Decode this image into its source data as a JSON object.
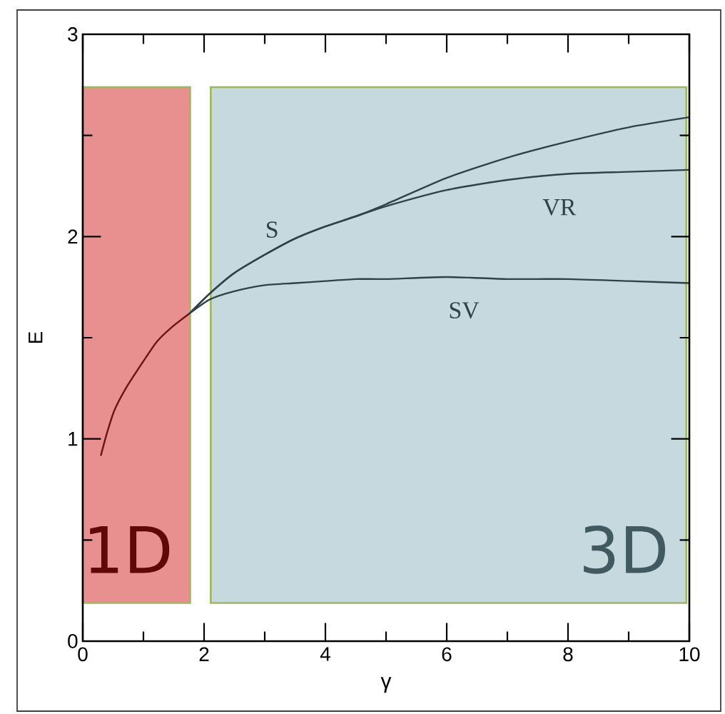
{
  "chart_data": {
    "type": "line",
    "xlabel": "γ",
    "ylabel": "E",
    "xlim": [
      0,
      10
    ],
    "ylim": [
      0,
      3
    ],
    "xticks": [
      0,
      {
        "value": 1,
        "label": null
      },
      2,
      {
        "value": 3,
        "label": null
      },
      4,
      {
        "value": 5,
        "label": null
      },
      6,
      {
        "value": 7,
        "label": null
      },
      8,
      {
        "value": 9,
        "label": null
      },
      10
    ],
    "yticks": [
      0,
      {
        "value": 0.5,
        "label": null
      },
      1,
      {
        "value": 1.5,
        "label": null
      },
      2,
      {
        "value": 2.5,
        "label": null
      },
      3
    ],
    "series": [
      {
        "color": "#6a1414",
        "x": [
          0.3,
          0.4,
          0.52,
          0.71,
          0.99,
          1.22,
          1.46,
          1.76
        ],
        "values": [
          0.92,
          1.03,
          1.14,
          1.25,
          1.38,
          1.48,
          1.55,
          1.62
        ]
      },
      {
        "name": "S",
        "color": "#2f4247",
        "x": [
          1.76,
          2.1,
          2.5,
          3,
          3.5,
          4,
          4.5,
          5,
          6,
          7,
          8,
          9,
          10
        ],
        "values": [
          1.62,
          1.72,
          1.82,
          1.91,
          1.99,
          2.05,
          2.1,
          2.16,
          2.29,
          2.39,
          2.47,
          2.54,
          2.59
        ]
      },
      {
        "name": "VR",
        "color": "#2f4247",
        "x": [
          1.76,
          2.1,
          2.5,
          3,
          3.5,
          4,
          4.5,
          5,
          6,
          7,
          8,
          9,
          10
        ],
        "values": [
          1.62,
          1.72,
          1.82,
          1.91,
          1.99,
          2.05,
          2.1,
          2.15,
          2.23,
          2.28,
          2.31,
          2.32,
          2.33
        ]
      },
      {
        "name": "SV",
        "color": "#2f4247",
        "x": [
          1.76,
          2.1,
          2.5,
          3,
          3.5,
          4,
          4.5,
          5,
          6,
          7,
          8,
          9,
          10
        ],
        "values": [
          1.62,
          1.69,
          1.73,
          1.76,
          1.77,
          1.78,
          1.79,
          1.79,
          1.8,
          1.79,
          1.79,
          1.78,
          1.77
        ]
      }
    ],
    "bands": [
      {
        "axis": "x",
        "from": 0,
        "to": 1.77,
        "label": "1D",
        "color": "#e8908f"
      },
      {
        "axis": "x",
        "from": 2.11,
        "to": 9.95,
        "label": "3D",
        "color": "#c5d9df"
      }
    ]
  }
}
